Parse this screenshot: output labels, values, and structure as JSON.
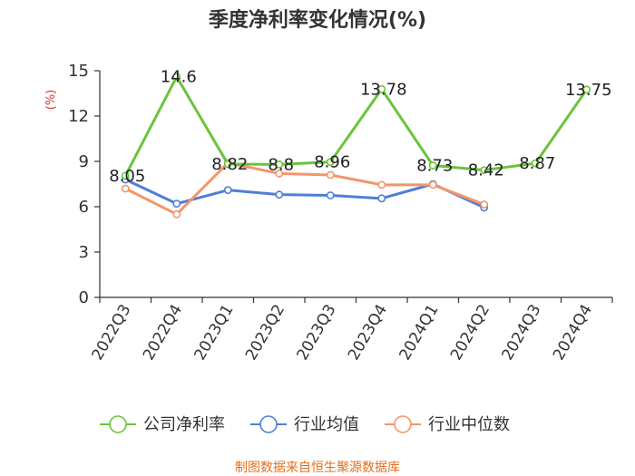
{
  "chart_data": {
    "type": "line",
    "title": "季度净利率变化情况(%)",
    "ylabel": "(%)",
    "categories": [
      "2022Q3",
      "2022Q4",
      "2023Q1",
      "2023Q2",
      "2023Q3",
      "2023Q4",
      "2024Q1",
      "2024Q2",
      "2024Q3",
      "2024Q4"
    ],
    "ylim": [
      0,
      15
    ],
    "yticks": [
      "0",
      "3",
      "6",
      "9",
      "12",
      "15"
    ],
    "grid": false,
    "legend_position": "bottom",
    "series": [
      {
        "name": "公司净利率",
        "color": "#6ac43c",
        "values": [
          8.05,
          14.6,
          8.82,
          8.8,
          8.96,
          13.78,
          8.73,
          8.42,
          8.87,
          13.75
        ],
        "labels": [
          "8.05",
          "14.6",
          "8.82",
          "8.8",
          "8.96",
          "13.78",
          "8.73",
          "8.42",
          "8.87",
          "13.75"
        ],
        "markers": [
          true,
          true,
          true,
          true,
          true,
          true,
          true,
          true,
          true,
          true
        ]
      },
      {
        "name": "行业均值",
        "color": "#4f7fd6",
        "values": [
          7.8,
          6.2,
          7.1,
          6.8,
          6.75,
          6.55,
          7.5,
          5.95,
          null,
          null
        ],
        "markers": [
          true,
          true,
          true,
          true,
          true,
          true,
          true,
          true,
          false,
          false
        ]
      },
      {
        "name": "行业中位数",
        "color": "#f4956a",
        "values": [
          7.2,
          5.5,
          8.9,
          8.2,
          8.1,
          7.45,
          7.45,
          6.15,
          null,
          null
        ],
        "markers": [
          true,
          true,
          true,
          true,
          true,
          true,
          true,
          true,
          false,
          false
        ]
      }
    ],
    "source": "制图数据来自恒生聚源数据库",
    "colors": {
      "axis": "#333333",
      "unit_label": "#e03030",
      "source": "#e07020"
    }
  }
}
